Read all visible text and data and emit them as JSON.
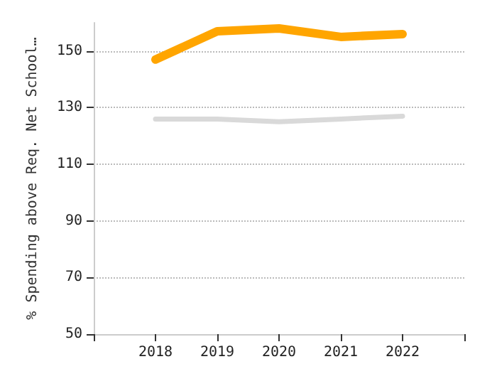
{
  "chart_data": {
    "type": "line",
    "ylabel": "% Spending above Req. Net School…",
    "x": [
      2018,
      2019,
      2020,
      2021,
      2022
    ],
    "series": [
      {
        "color": "#ffa500",
        "values": [
          147,
          157,
          158,
          155,
          156
        ]
      },
      {
        "color": "#d9d9d9",
        "values": [
          126,
          126,
          125,
          126,
          127
        ]
      }
    ],
    "xlim": [
      2017,
      2023
    ],
    "xticks": [
      {
        "value": 2017,
        "label": null
      },
      2018,
      2019,
      2020,
      2021,
      2022,
      {
        "value": 2023,
        "label": null
      }
    ],
    "ylim": [
      50,
      160
    ],
    "yticks": [
      50,
      70,
      90,
      110,
      130,
      150
    ],
    "grid": "y",
    "marker": "none",
    "line_style": "solid"
  }
}
